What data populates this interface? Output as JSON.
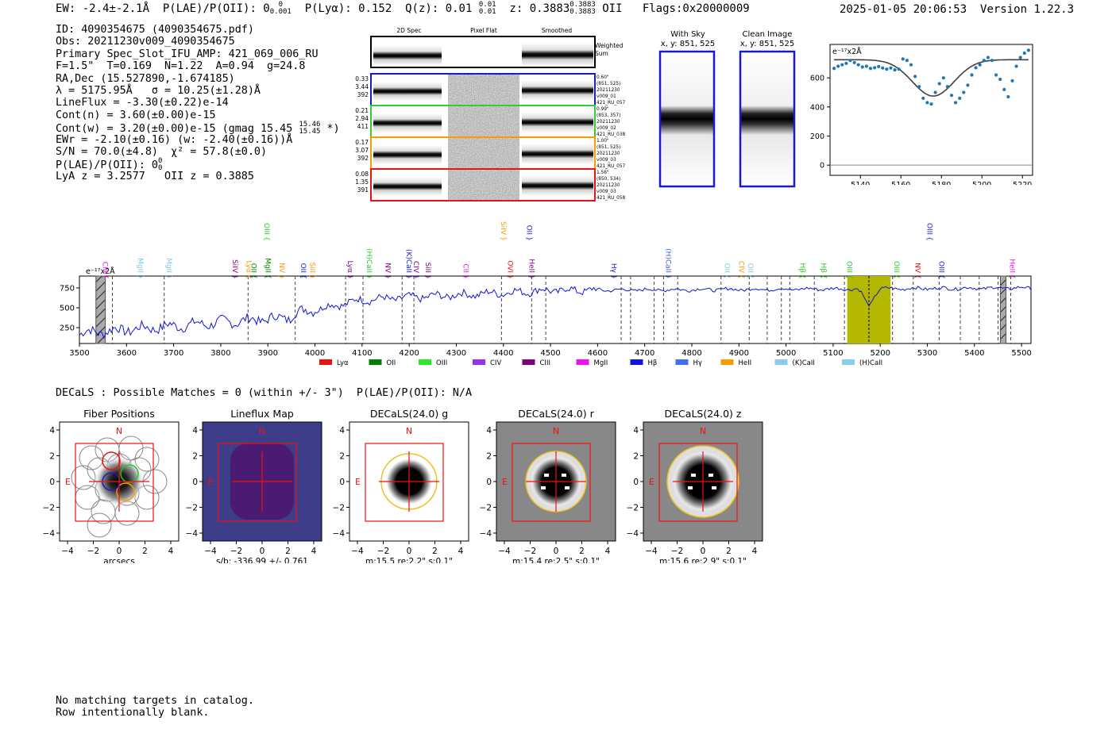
{
  "header": {
    "ew": "EW: -2.4±-2.1Å",
    "plae_label": "P(LAE)/P(OII): 0",
    "plae_sup": "0",
    "plae_sub": "0.001",
    "plya": "P(Lyα): 0.152",
    "qz_label": "Q(z): 0.01",
    "qz_sup": "0.01",
    "qz_sub": "0.01",
    "z_label": "z: 0.3883",
    "z_sup": "0.3883",
    "z_sub": "0.3883",
    "z_line": "OII",
    "flags": "Flags:0x20000009",
    "timestamp": "2025-01-05 20:06:53",
    "version": "Version 1.22.3"
  },
  "info": {
    "id": "ID: 4090354675 (4090354675.pdf)",
    "obs": "Obs: 20211230v009_4090354675",
    "primary": "Primary Spec_Slot_IFU_AMP: 421_069_006_RU",
    "fibers": "F=1.5\"  T=0.169  N=1.22  A=0.94  g=24.8",
    "radec": "RA,Dec (15.527890,-1.674185)",
    "lambda": "λ = 5175.95Å   σ = 10.25(±1.28)Å",
    "lineflux": "LineFlux = -3.30(±0.22)e-14",
    "contn": "Cont(n) = 3.60(±0.00)e-15",
    "contw": "Cont(w) = 3.20(±0.00)e-15 (gmag 15.45",
    "contw_sup": "15.46",
    "contw_sub": "15.45",
    "contw_end": "*)",
    "ewr": "EWr = -2.10(±0.16) (w: -2.40(±0.16))Å",
    "sn": "S/N = 70.0(±4.8)  χ² = 57.8(±0.0)",
    "plae": "P(LAE)/P(OII): 0",
    "plae_sup": "0",
    "plae_sub": "0",
    "lya_z": "LyA z = 3.2577   OII z = 0.3885"
  },
  "cutouts": {
    "col_2d": "2D Spec",
    "col_flat": "Pixel Flat",
    "col_smooth": "Smoothed",
    "weighted_label_1": "Weighted",
    "weighted_label_2": "Sum",
    "rows": [
      {
        "left": [
          "0.33",
          "3.44",
          "392"
        ],
        "right": [
          "0.60\"",
          "(851, 525)",
          "20211230",
          "v009_01",
          "421_RU_057"
        ],
        "color": "#1a1acc"
      },
      {
        "left": [
          "0.21",
          "2.94",
          "411"
        ],
        "right": [
          "0.99\"",
          "(853, 357)",
          "20211230",
          "v009_02",
          "421_RU_038"
        ],
        "color": "#33cc33"
      },
      {
        "left": [
          "0.17",
          "3.07",
          "392"
        ],
        "right": [
          "1.00\"",
          "(851, 525)",
          "20211230",
          "v009_03",
          "421_RU_057"
        ],
        "color": "#ff9900"
      },
      {
        "left": [
          "0.08",
          "1.35",
          "391"
        ],
        "right": [
          "1.56\"",
          "(850, 534)",
          "20211230",
          "v009_03",
          "421_RU_058"
        ],
        "color": "#ee1111"
      }
    ]
  },
  "sky": {
    "with_sky_title": "With Sky",
    "with_sky_coords": "x, y: 851, 525",
    "clean_title": "Clean Image",
    "clean_coords": "x, y: 851, 525"
  },
  "colors": {
    "spectrum": "#1414d2",
    "fit": "#404040",
    "points": "#1f77b4",
    "highlight": "#b5b800",
    "box": "#2030c0"
  },
  "chart_data": [
    {
      "type": "scatter",
      "title": "",
      "scale_label": "e⁻¹⁷x2Å",
      "xlim": [
        5125,
        5225
      ],
      "ylim": [
        -70,
        830
      ],
      "xticks": [
        5140,
        5160,
        5180,
        5200,
        5220
      ],
      "yticks": [
        0,
        200,
        400,
        600
      ],
      "x": [
        5127,
        5129,
        5131,
        5133,
        5135,
        5137,
        5139,
        5141,
        5143,
        5145,
        5147,
        5149,
        5151,
        5153,
        5155,
        5157,
        5159,
        5161,
        5163,
        5165,
        5167,
        5169,
        5171,
        5173,
        5175,
        5177,
        5179,
        5181,
        5183,
        5185,
        5187,
        5189,
        5191,
        5193,
        5195,
        5197,
        5199,
        5201,
        5203,
        5205,
        5207,
        5209,
        5211,
        5213,
        5215,
        5217,
        5219,
        5221,
        5223
      ],
      "y": [
        665,
        680,
        690,
        700,
        720,
        705,
        690,
        675,
        680,
        665,
        670,
        678,
        668,
        660,
        668,
        655,
        660,
        730,
        720,
        690,
        610,
        540,
        460,
        430,
        420,
        500,
        560,
        600,
        540,
        480,
        430,
        460,
        500,
        550,
        620,
        670,
        690,
        720,
        740,
        720,
        620,
        590,
        520,
        470,
        580,
        680,
        740,
        770,
        790
      ],
      "fit": {
        "continuum": 725,
        "center": 5175.95,
        "sigma": 10.25,
        "depth": 250
      }
    },
    {
      "type": "line",
      "title": "",
      "scale_label": "e⁻¹⁷x2Å",
      "xlim": [
        3500,
        5520
      ],
      "ylim": [
        50,
        900
      ],
      "xticks": [
        3500,
        3600,
        3700,
        3800,
        3900,
        4000,
        4100,
        4200,
        4300,
        4400,
        4500,
        4600,
        4700,
        4800,
        4900,
        5000,
        5100,
        5200,
        5300,
        5400,
        5500
      ],
      "yticks": [
        250,
        500,
        750
      ],
      "highlight": [
        5130,
        5222
      ],
      "highlight_center": 5175.95,
      "masked": [
        [
          3535,
          3555
        ],
        [
          5455,
          5467
        ]
      ],
      "lines": [
        {
          "label": "CIII",
          "x": 3545,
          "color": "#ee11ee",
          "type": "e"
        },
        {
          "label": "MgII",
          "x": 3620,
          "color": "#7fc8e8",
          "type": "a"
        },
        {
          "label": "MgII",
          "x": 3680,
          "color": "#7fc8e8",
          "type": "a"
        },
        {
          "label": "SiIV",
          "x": 3820,
          "color": "#800080",
          "type": "a"
        },
        {
          "label": "Lyα",
          "x": 3850,
          "color": "#ff9900",
          "type": "e"
        },
        {
          "label": "OII",
          "x": 3860,
          "color": "#008000",
          "type": "e"
        },
        {
          "label": "MgII",
          "x": 3890,
          "color": "#008000",
          "type": "e"
        },
        {
          "label": "OIII",
          "x": 3888,
          "color": "#22cc22",
          "type": "e",
          "high": true
        },
        {
          "label": "NV",
          "x": 3920,
          "color": "#ff9900",
          "type": "a"
        },
        {
          "label": "OII",
          "x": 3965,
          "color": "#1a1acc",
          "type": "e"
        },
        {
          "label": "SiII",
          "x": 3985,
          "color": "#ff9900",
          "type": "a"
        },
        {
          "label": "Lyα",
          "x": 4065,
          "color": "#800080",
          "type": "a"
        },
        {
          "label": "(H)CaII",
          "x": 4105,
          "color": "#22cc22",
          "type": "a"
        },
        {
          "label": "NV",
          "x": 4145,
          "color": "#800080",
          "type": "a"
        },
        {
          "label": "(K)CaII",
          "x": 4190,
          "color": "#1a1acc",
          "type": "a"
        },
        {
          "label": "CIV",
          "x": 4205,
          "color": "#800080",
          "type": "a"
        },
        {
          "label": "SiII",
          "x": 4230,
          "color": "#800080",
          "type": "a"
        },
        {
          "label": "CII",
          "x": 4310,
          "color": "#ee11ee",
          "type": "a"
        },
        {
          "label": "SiIV",
          "x": 4390,
          "color": "#ff9900",
          "type": "a",
          "high": true
        },
        {
          "label": "OVI",
          "x": 4405,
          "color": "#ee1111",
          "type": "a"
        },
        {
          "label": "OII",
          "x": 4445,
          "color": "#1a1acc",
          "type": "a",
          "high": true
        },
        {
          "label": "HeII",
          "x": 4450,
          "color": "#800080",
          "type": "a"
        },
        {
          "label": "Hγ",
          "x": 4625,
          "color": "#1a1acc",
          "type": "a"
        },
        {
          "label": "(H)CaII",
          "x": 4740,
          "color": "#4060dd",
          "type": "a"
        },
        {
          "label": "OII",
          "x": 4865,
          "color": "#7fc8e8",
          "type": "e"
        },
        {
          "label": "CIV",
          "x": 4895,
          "color": "#ff9900",
          "type": "e"
        },
        {
          "label": "OII",
          "x": 4915,
          "color": "#7fc8e8",
          "type": "e"
        },
        {
          "label": "Hβ",
          "x": 5025,
          "color": "#22cc22",
          "type": "e"
        },
        {
          "label": "Hβ",
          "x": 5070,
          "color": "#22cc22",
          "type": "e"
        },
        {
          "label": "OIII",
          "x": 5125,
          "color": "#22cc22",
          "type": "e"
        },
        {
          "label": "OIII",
          "x": 5225,
          "color": "#22cc22",
          "type": "e"
        },
        {
          "label": "NV",
          "x": 5270,
          "color": "#ee1111",
          "type": "e"
        },
        {
          "label": "OIII",
          "x": 5295,
          "color": "#1a1acc",
          "type": "e",
          "high": true
        },
        {
          "label": "OIII",
          "x": 5320,
          "color": "#1a1acc",
          "type": "e"
        },
        {
          "label": "HeII",
          "x": 5470,
          "color": "#ee11ee",
          "type": "e"
        }
      ],
      "dashed": [
        3570,
        3680,
        3858,
        3958,
        4065,
        4102,
        4185,
        4210,
        4396,
        4460,
        4490,
        4650,
        4670,
        4720,
        4740,
        4770,
        4862,
        4922,
        4960,
        4990,
        5008,
        5060,
        5124,
        5226,
        5270,
        5325,
        5370,
        5410,
        5450,
        5477
      ],
      "legend": [
        {
          "label": "Lyα",
          "color": "#ee1111"
        },
        {
          "label": "OII",
          "color": "#008000"
        },
        {
          "label": "OIII",
          "color": "#22ee22"
        },
        {
          "label": "CIV",
          "color": "#9a30ee"
        },
        {
          "label": "CIII",
          "color": "#800080"
        },
        {
          "label": "MgII",
          "color": "#ee11ee"
        },
        {
          "label": "Hβ",
          "color": "#1111ee"
        },
        {
          "label": "Hγ",
          "color": "#4070ee"
        },
        {
          "label": "HeII",
          "color": "#ff9900"
        },
        {
          "label": "(K)CaII",
          "color": "#88ccee"
        },
        {
          "label": "(H)CaII",
          "color": "#88ccee"
        }
      ]
    }
  ],
  "matches": "DECaLS : Possible Matches = 0 (within +/- 3\")  P(LAE)/P(OII): N/A",
  "imaging": {
    "axis_ticks": [
      "-4",
      "-2",
      "0",
      "2",
      "4"
    ],
    "north": "N",
    "east": "E",
    "panels": [
      {
        "title": "Fiber Positions",
        "caption": "arcsecs"
      },
      {
        "title": "Lineflux Map",
        "caption": "s/b: -336.99 +/- 0.761"
      },
      {
        "title": "DECaLS(24.0) g",
        "caption": "m:15.5  re:2.2\"  s:0.1\""
      },
      {
        "title": "DECaLS(24.0) r",
        "caption": "m:15.4  re:2.5\"  s:0.1\""
      },
      {
        "title": "DECaLS(24.0) z",
        "caption": "m:15.6  re:2.9\"  s:0.1\""
      }
    ]
  },
  "footer": {
    "line1": "No matching targets in catalog.",
    "line2": "Row intentionally blank."
  }
}
